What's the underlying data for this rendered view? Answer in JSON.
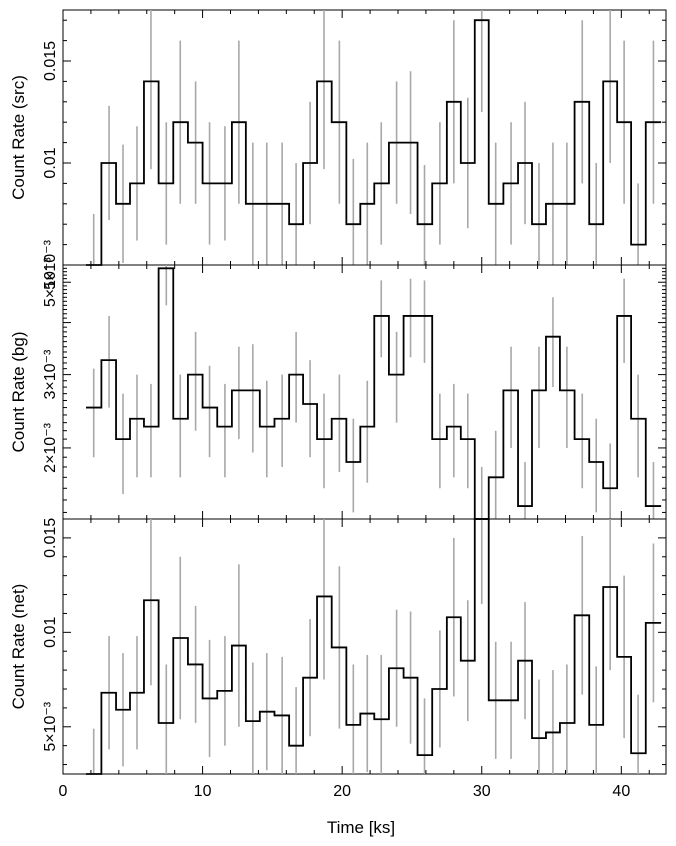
{
  "chart_data": [
    {
      "type": "line",
      "subtype": "step",
      "ylabel": "Count Rate (src)",
      "ylim": [
        0.005,
        0.0175
      ],
      "yticks": [
        {
          "v": 0.005,
          "label": "5×10⁻³"
        },
        {
          "v": 0.01,
          "label": "0.01"
        },
        {
          "v": 0.015,
          "label": "0.015"
        }
      ],
      "x": [
        2.2,
        3.3,
        4.3,
        5.3,
        6.3,
        7.4,
        8.4,
        9.5,
        10.5,
        11.6,
        12.6,
        13.6,
        14.6,
        15.7,
        16.7,
        17.7,
        18.7,
        19.8,
        20.8,
        21.8,
        22.8,
        23.9,
        24.9,
        25.9,
        27.0,
        28.0,
        29.0,
        30.0,
        31.0,
        32.1,
        33.1,
        34.1,
        35.1,
        36.1,
        37.2,
        38.2,
        39.2,
        40.2,
        41.2,
        42.3
      ],
      "y": [
        0.005,
        0.01,
        0.008,
        0.009,
        0.014,
        0.009,
        0.012,
        0.011,
        0.009,
        0.009,
        0.012,
        0.008,
        0.008,
        0.008,
        0.007,
        0.01,
        0.014,
        0.012,
        0.007,
        0.008,
        0.009,
        0.011,
        0.011,
        0.007,
        0.009,
        0.013,
        0.01,
        0.017,
        0.008,
        0.009,
        0.01,
        0.007,
        0.008,
        0.008,
        0.013,
        0.007,
        0.014,
        0.012,
        0.006,
        0.012
      ],
      "err": [
        0.0025,
        0.0028,
        0.0029,
        0.0028,
        0.0043,
        0.003,
        0.004,
        0.003,
        0.003,
        0.0028,
        0.004,
        0.003,
        0.003,
        0.003,
        0.003,
        0.003,
        0.0043,
        0.004,
        0.0032,
        0.003,
        0.003,
        0.003,
        0.0035,
        0.0029,
        0.003,
        0.004,
        0.0032,
        0.0045,
        0.003,
        0.003,
        0.003,
        0.003,
        0.003,
        0.003,
        0.004,
        0.003,
        0.004,
        0.004,
        0.003,
        0.004
      ]
    },
    {
      "type": "line",
      "subtype": "step",
      "ylabel": "Count Rate (bg)",
      "ylim": [
        1.35,
        5.5
      ],
      "yscale": "log",
      "yunit_factor": 0.001,
      "yticks": [
        {
          "v": 2,
          "label": "2×10⁻³"
        },
        {
          "v": 3,
          "label": "3×10⁻³"
        },
        {
          "v": 5,
          "label": "5×10⁻³"
        }
      ],
      "x": [
        2.2,
        3.3,
        4.3,
        5.3,
        6.3,
        7.4,
        8.4,
        9.5,
        10.5,
        11.6,
        12.6,
        13.6,
        14.6,
        15.7,
        16.7,
        17.7,
        18.7,
        19.8,
        20.8,
        21.8,
        22.8,
        23.9,
        24.9,
        25.9,
        27.0,
        28.0,
        29.0,
        30.0,
        31.0,
        32.1,
        33.1,
        34.1,
        35.1,
        36.1,
        37.2,
        38.2,
        39.2,
        40.2,
        41.2,
        42.3
      ],
      "y": [
        2.5,
        3.25,
        2.1,
        2.35,
        2.25,
        5.4,
        2.35,
        3.0,
        2.5,
        2.25,
        2.75,
        2.75,
        2.25,
        2.35,
        3.0,
        2.55,
        2.1,
        2.35,
        1.85,
        2.25,
        4.15,
        3.0,
        4.15,
        4.15,
        2.1,
        2.25,
        2.1,
        1.35,
        1.7,
        2.75,
        1.45,
        2.75,
        3.7,
        2.75,
        2.1,
        1.85,
        1.6,
        4.15,
        2.35,
        1.45
      ],
      "lo": [
        1.9,
        2.5,
        1.55,
        1.7,
        1.7,
        4.4,
        1.7,
        2.2,
        1.9,
        1.7,
        2.1,
        1.95,
        1.7,
        1.8,
        2.3,
        1.9,
        1.6,
        1.75,
        1.4,
        1.65,
        3.3,
        2.3,
        3.3,
        3.2,
        1.6,
        1.7,
        1.6,
        1.35,
        1.35,
        2.0,
        1.35,
        2.0,
        2.8,
        2.0,
        1.6,
        1.4,
        1.35,
        3.2,
        1.7,
        1.35
      ],
      "hi": [
        3.1,
        4.15,
        2.7,
        3.0,
        2.85,
        5.5,
        3.0,
        3.8,
        3.15,
        2.85,
        3.5,
        3.55,
        2.9,
        3.0,
        3.8,
        3.25,
        2.7,
        3.0,
        2.35,
        2.9,
        5.05,
        3.8,
        5.1,
        5.05,
        2.7,
        2.85,
        2.7,
        1.8,
        2.2,
        3.5,
        1.85,
        3.5,
        4.6,
        3.5,
        2.7,
        2.35,
        2.05,
        5.1,
        3.0,
        1.85
      ]
    },
    {
      "type": "line",
      "subtype": "step",
      "ylabel": "Count Rate (net)",
      "xlabel": "Time [ks]",
      "ylim": [
        0.0025,
        0.016
      ],
      "yticks": [
        {
          "v": 0.005,
          "label": "5×10⁻³"
        },
        {
          "v": 0.01,
          "label": "0.01"
        },
        {
          "v": 0.015,
          "label": "0.015"
        }
      ],
      "xlim": [
        0,
        43.2
      ],
      "xticks": [
        0,
        10,
        20,
        30,
        40
      ],
      "x": [
        2.2,
        3.3,
        4.3,
        5.3,
        6.3,
        7.4,
        8.4,
        9.5,
        10.5,
        11.6,
        12.6,
        13.6,
        14.6,
        15.7,
        16.7,
        17.7,
        18.7,
        19.8,
        20.8,
        21.8,
        22.8,
        23.9,
        24.9,
        25.9,
        27.0,
        28.0,
        29.0,
        30.0,
        31.0,
        32.1,
        33.1,
        34.1,
        35.1,
        36.1,
        37.2,
        38.2,
        39.2,
        40.2,
        41.2,
        42.3
      ],
      "y": [
        0.0025,
        0.0068,
        0.0059,
        0.0068,
        0.0117,
        0.0052,
        0.0097,
        0.0083,
        0.0065,
        0.0069,
        0.0093,
        0.0053,
        0.0058,
        0.0056,
        0.004,
        0.0076,
        0.0119,
        0.0092,
        0.0051,
        0.0057,
        0.0054,
        0.0081,
        0.0076,
        0.0035,
        0.007,
        0.0108,
        0.0085,
        0.0161,
        0.0064,
        0.0064,
        0.0085,
        0.0044,
        0.0047,
        0.0052,
        0.0109,
        0.0051,
        0.0124,
        0.0087,
        0.0036,
        0.0105
      ],
      "err": [
        0.0024,
        0.003,
        0.003,
        0.003,
        0.0045,
        0.0031,
        0.0043,
        0.0031,
        0.0031,
        0.0029,
        0.0043,
        0.0031,
        0.0031,
        0.0031,
        0.0031,
        0.0031,
        0.0044,
        0.0043,
        0.0032,
        0.0031,
        0.0034,
        0.0031,
        0.0035,
        0.003,
        0.0031,
        0.0042,
        0.0032,
        0.0046,
        0.0031,
        0.0031,
        0.0031,
        0.0031,
        0.0033,
        0.0031,
        0.0042,
        0.0031,
        0.0044,
        0.0043,
        0.0031,
        0.0042
      ]
    }
  ]
}
